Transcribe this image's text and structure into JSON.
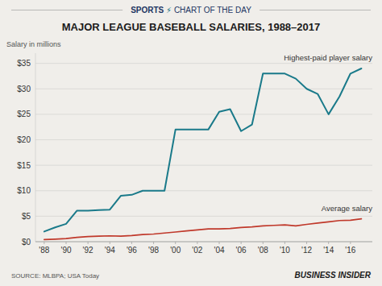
{
  "chart_data": {
    "type": "line",
    "header": [
      "SPORTS",
      " ⚡",
      "CHART OF THE DAY"
    ],
    "title": "MAJOR LEAGUE BASEBALL SALARIES, 1988–2017",
    "y_label": "Salary in millions",
    "source": "SOURCE: MLBPA; USA Today",
    "footer": "BUSINESS INSIDER",
    "x": [
      1988,
      1989,
      1990,
      1991,
      1992,
      1993,
      1994,
      1995,
      1996,
      1997,
      1998,
      1999,
      2000,
      2001,
      2002,
      2003,
      2004,
      2005,
      2006,
      2007,
      2008,
      2009,
      2010,
      2011,
      2012,
      2013,
      2014,
      2015,
      2016,
      2017
    ],
    "series": [
      {
        "name": "Highest-paid player salary",
        "color": "#1a7a8a",
        "values": [
          2.0,
          2.8,
          3.5,
          6.1,
          6.1,
          6.2,
          6.3,
          9.0,
          9.2,
          10.0,
          10.0,
          10.0,
          22.0,
          22.0,
          22.0,
          22.0,
          25.5,
          26.0,
          21.7,
          23.0,
          33.0,
          33.0,
          33.0,
          32.0,
          30.0,
          29.0,
          25.0,
          28.5,
          33.0,
          34.0
        ]
      },
      {
        "name": "Average salary",
        "color": "#c0392b",
        "values": [
          0.4,
          0.5,
          0.6,
          0.85,
          1.0,
          1.1,
          1.15,
          1.1,
          1.2,
          1.4,
          1.5,
          1.7,
          1.9,
          2.1,
          2.3,
          2.5,
          2.5,
          2.6,
          2.8,
          2.9,
          3.1,
          3.2,
          3.3,
          3.1,
          3.4,
          3.65,
          3.9,
          4.15,
          4.2,
          4.5
        ]
      }
    ],
    "xlim": [
      1987.2,
      2018.0
    ],
    "xticks": [
      {
        "value": 1988,
        "label": "'88"
      },
      {
        "value": 1990,
        "label": "'90"
      },
      {
        "value": 1992,
        "label": "'92"
      },
      {
        "value": 1994,
        "label": "'94"
      },
      {
        "value": 1996,
        "label": "'96"
      },
      {
        "value": 1998,
        "label": "'98"
      },
      {
        "value": 2000,
        "label": "'00"
      },
      {
        "value": 2002,
        "label": "'02"
      },
      {
        "value": 2004,
        "label": "'04"
      },
      {
        "value": 2006,
        "label": "'06"
      },
      {
        "value": 2008,
        "label": "'08"
      },
      {
        "value": 2010,
        "label": "'10"
      },
      {
        "value": 2012,
        "label": "'12"
      },
      {
        "value": 2014,
        "label": "'14"
      },
      {
        "value": 2016,
        "label": "'16"
      }
    ],
    "ylim": [
      0,
      37
    ],
    "yticks": [
      {
        "value": 0,
        "label": "$0"
      },
      {
        "value": 5,
        "label": "$5"
      },
      {
        "value": 10,
        "label": "$10"
      },
      {
        "value": 15,
        "label": "$15"
      },
      {
        "value": 20,
        "label": "$20"
      },
      {
        "value": 25,
        "label": "$25"
      },
      {
        "value": 30,
        "label": "$30"
      },
      {
        "value": 35,
        "label": "$35"
      }
    ],
    "grid": true
  }
}
